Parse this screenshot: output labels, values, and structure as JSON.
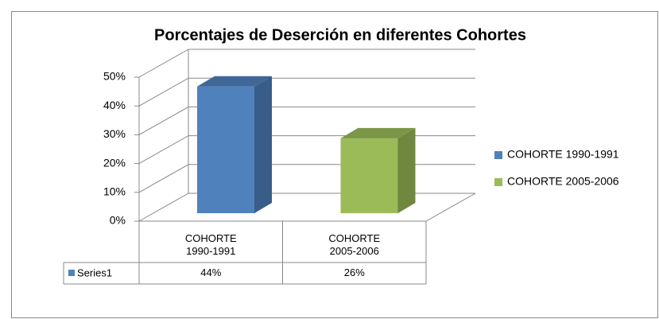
{
  "chart_data": {
    "type": "bar3d",
    "title": "Porcentajes de Deserción en diferentes Cohortes",
    "categories": [
      "COHORTE 1990-1991",
      "COHORTE 2005-2006"
    ],
    "series": [
      {
        "name": "Series1",
        "color": "#4f81bd",
        "values": [
          44,
          26
        ],
        "value_labels": [
          "44%",
          "26%"
        ],
        "point_colors": [
          "#4f81bd",
          "#9bbb59"
        ]
      }
    ],
    "ylim": [
      0,
      50
    ],
    "yticks": [
      {
        "value": 0,
        "label": "0%"
      },
      {
        "value": 10,
        "label": "10%"
      },
      {
        "value": 20,
        "label": "20%"
      },
      {
        "value": 30,
        "label": "30%"
      },
      {
        "value": 40,
        "label": "40%"
      },
      {
        "value": 50,
        "label": "50%"
      }
    ],
    "grid": true,
    "legend": "right",
    "data_table": true
  }
}
